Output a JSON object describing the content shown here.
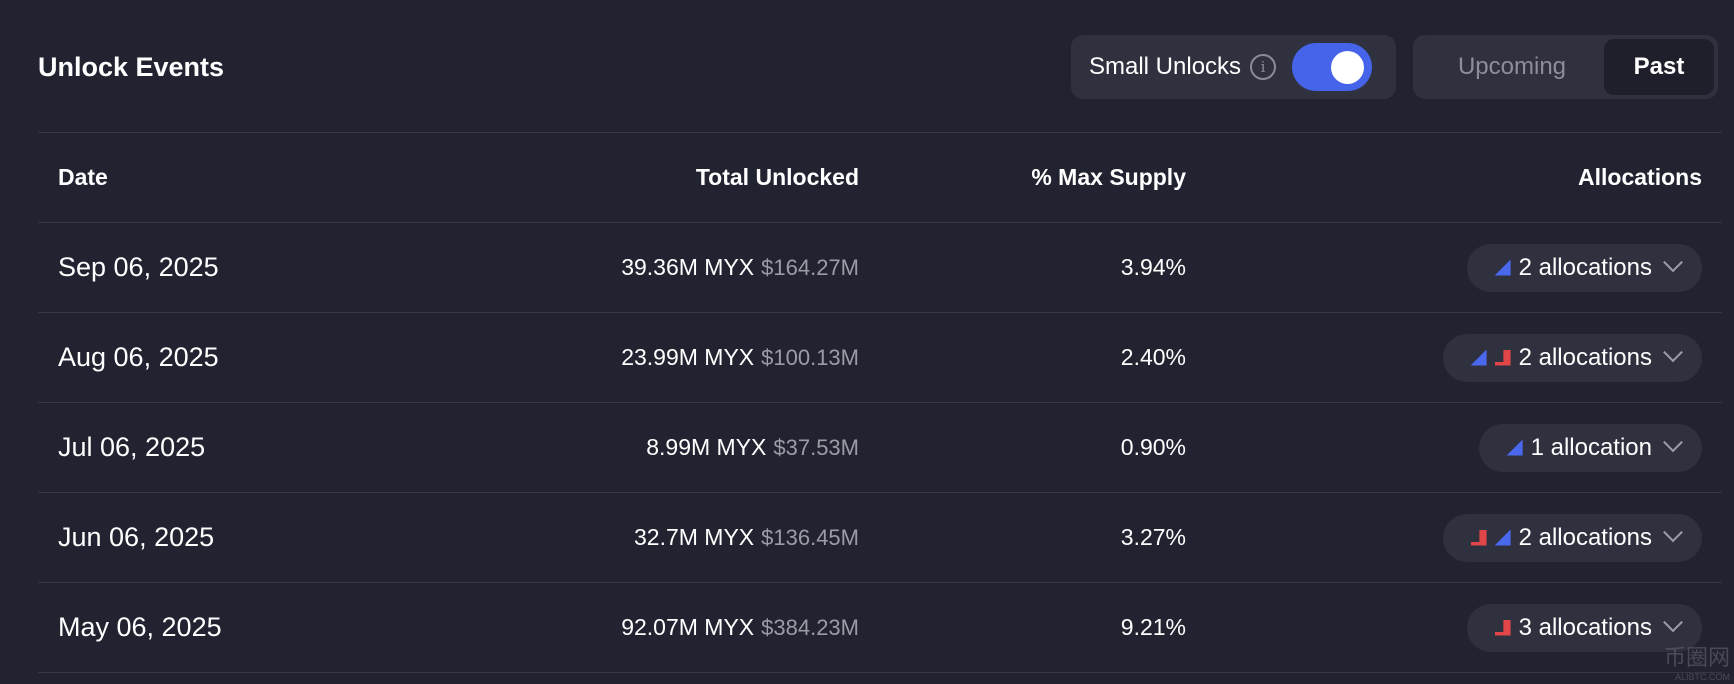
{
  "title": "Unlock Events",
  "small_unlocks": {
    "label": "Small Unlocks",
    "info_icon": "i",
    "enabled": true
  },
  "tabs": [
    {
      "label": "Upcoming",
      "active": false
    },
    {
      "label": "Past",
      "active": true
    }
  ],
  "headers": {
    "date": "Date",
    "total": "Total Unlocked",
    "pct": "% Max Supply",
    "alloc": "Allocations"
  },
  "rows": [
    {
      "date": "Sep 06, 2025",
      "amount": "39.36M MYX",
      "usd": "$164.27M",
      "pct": "3.94%",
      "alloc": "2 allocations",
      "icons": [
        "triangle"
      ]
    },
    {
      "date": "Aug 06, 2025",
      "amount": "23.99M MYX",
      "usd": "$100.13M",
      "pct": "2.40%",
      "alloc": "2 allocations",
      "icons": [
        "triangle",
        "step"
      ]
    },
    {
      "date": "Jul 06, 2025",
      "amount": "8.99M MYX",
      "usd": "$37.53M",
      "pct": "0.90%",
      "alloc": "1 allocation",
      "icons": [
        "triangle"
      ]
    },
    {
      "date": "Jun 06, 2025",
      "amount": "32.7M MYX",
      "usd": "$136.45M",
      "pct": "3.27%",
      "alloc": "2 allocations",
      "icons": [
        "step",
        "triangle"
      ]
    },
    {
      "date": "May 06, 2025",
      "amount": "92.07M MYX",
      "usd": "$384.23M",
      "pct": "9.21%",
      "alloc": "3 allocations",
      "icons": [
        "step"
      ]
    }
  ],
  "colors": {
    "accent": "#4564ea",
    "triangle": "#4a68ee",
    "step": "#e04548"
  },
  "watermark": {
    "text": "币圈网",
    "sub": "ALIBTC.COM"
  }
}
